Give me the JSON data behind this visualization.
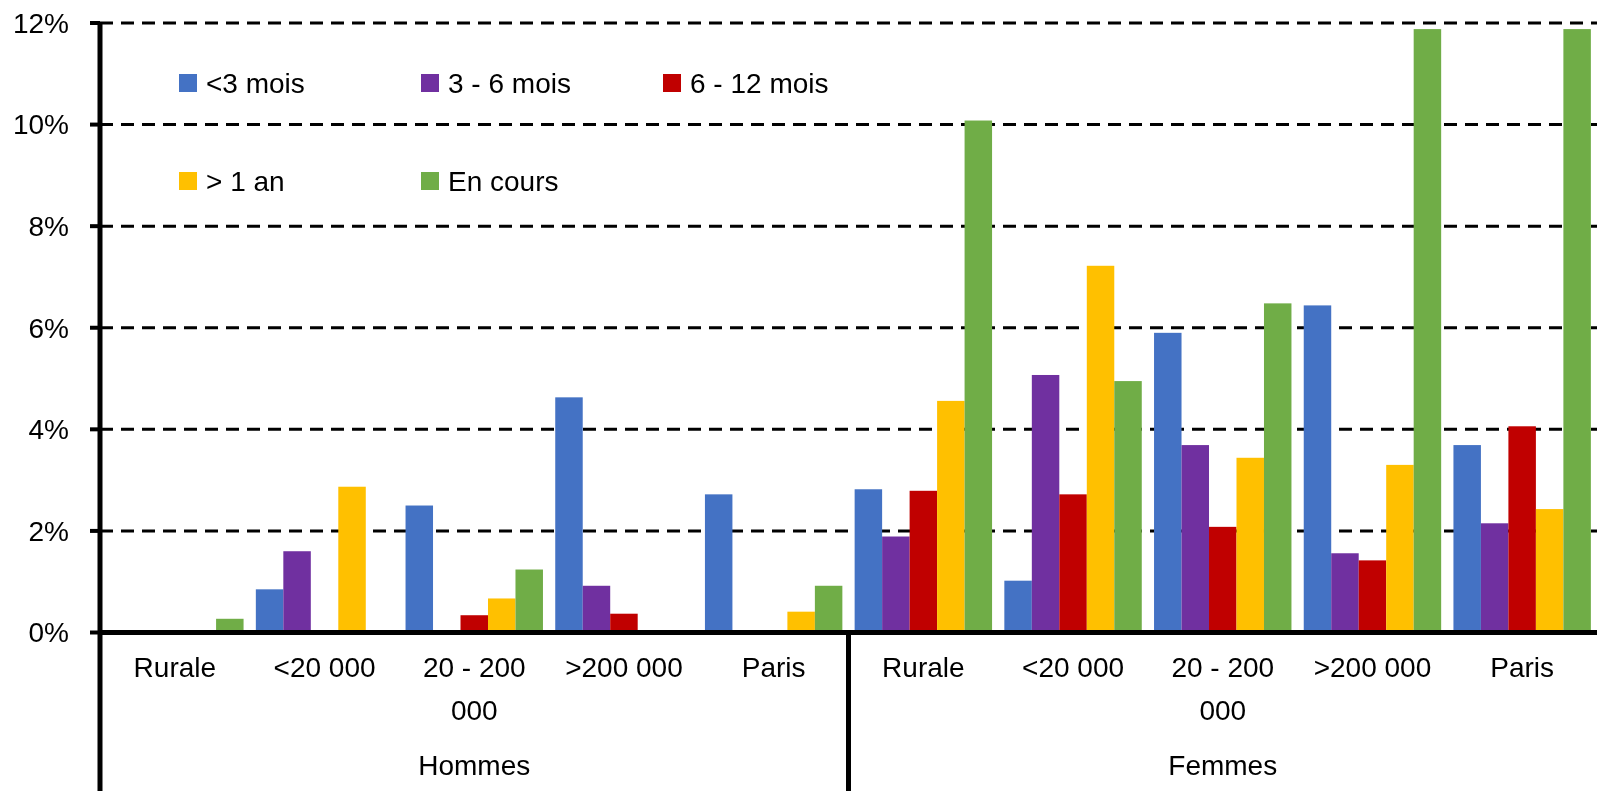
{
  "chart_data": {
    "type": "bar",
    "categories": [
      "Rurale",
      "<20 000",
      "20 - 200 000",
      ">200 000",
      "Paris",
      "Rurale",
      "<20 000",
      "20 - 200 000",
      ">200 000",
      "Paris"
    ],
    "series": [
      {
        "name": "<3 mois",
        "color": "#4472c4",
        "values": [
          null,
          0.85,
          2.5,
          4.63,
          2.72,
          2.82,
          1.02,
          5.9,
          6.44,
          3.69
        ]
      },
      {
        "name": "3 - 6 mois",
        "color": "#7030a0",
        "values": [
          null,
          1.6,
          null,
          0.92,
          null,
          1.89,
          5.07,
          3.69,
          1.56,
          2.15
        ]
      },
      {
        "name": "6 - 12 mois",
        "color": "#c00000",
        "values": [
          null,
          null,
          0.34,
          0.37,
          null,
          2.79,
          2.72,
          2.08,
          1.42,
          4.06
        ]
      },
      {
        "name": "> 1 an",
        "color": "#ffc000",
        "values": [
          null,
          2.87,
          0.67,
          null,
          0.41,
          4.56,
          7.22,
          3.44,
          3.3,
          2.43
        ]
      },
      {
        "name": "En cours",
        "color": "#70ad47",
        "values": [
          0.27,
          null,
          1.24,
          null,
          0.92,
          10.08,
          4.95,
          6.48,
          11.88,
          11.88
        ]
      }
    ],
    "ylim": [
      0,
      12
    ],
    "yticks": [
      {
        "value": 0,
        "label": "0%"
      },
      {
        "value": 2,
        "label": "2%"
      },
      {
        "value": 4,
        "label": "4%"
      },
      {
        "value": 6,
        "label": "6%"
      },
      {
        "value": 8,
        "label": "8%"
      },
      {
        "value": 10,
        "label": "10%"
      },
      {
        "value": 12,
        "label": "12%"
      }
    ],
    "grid": "y",
    "legend": "top left",
    "annotations": [
      "Hommes",
      "Femmes"
    ]
  }
}
